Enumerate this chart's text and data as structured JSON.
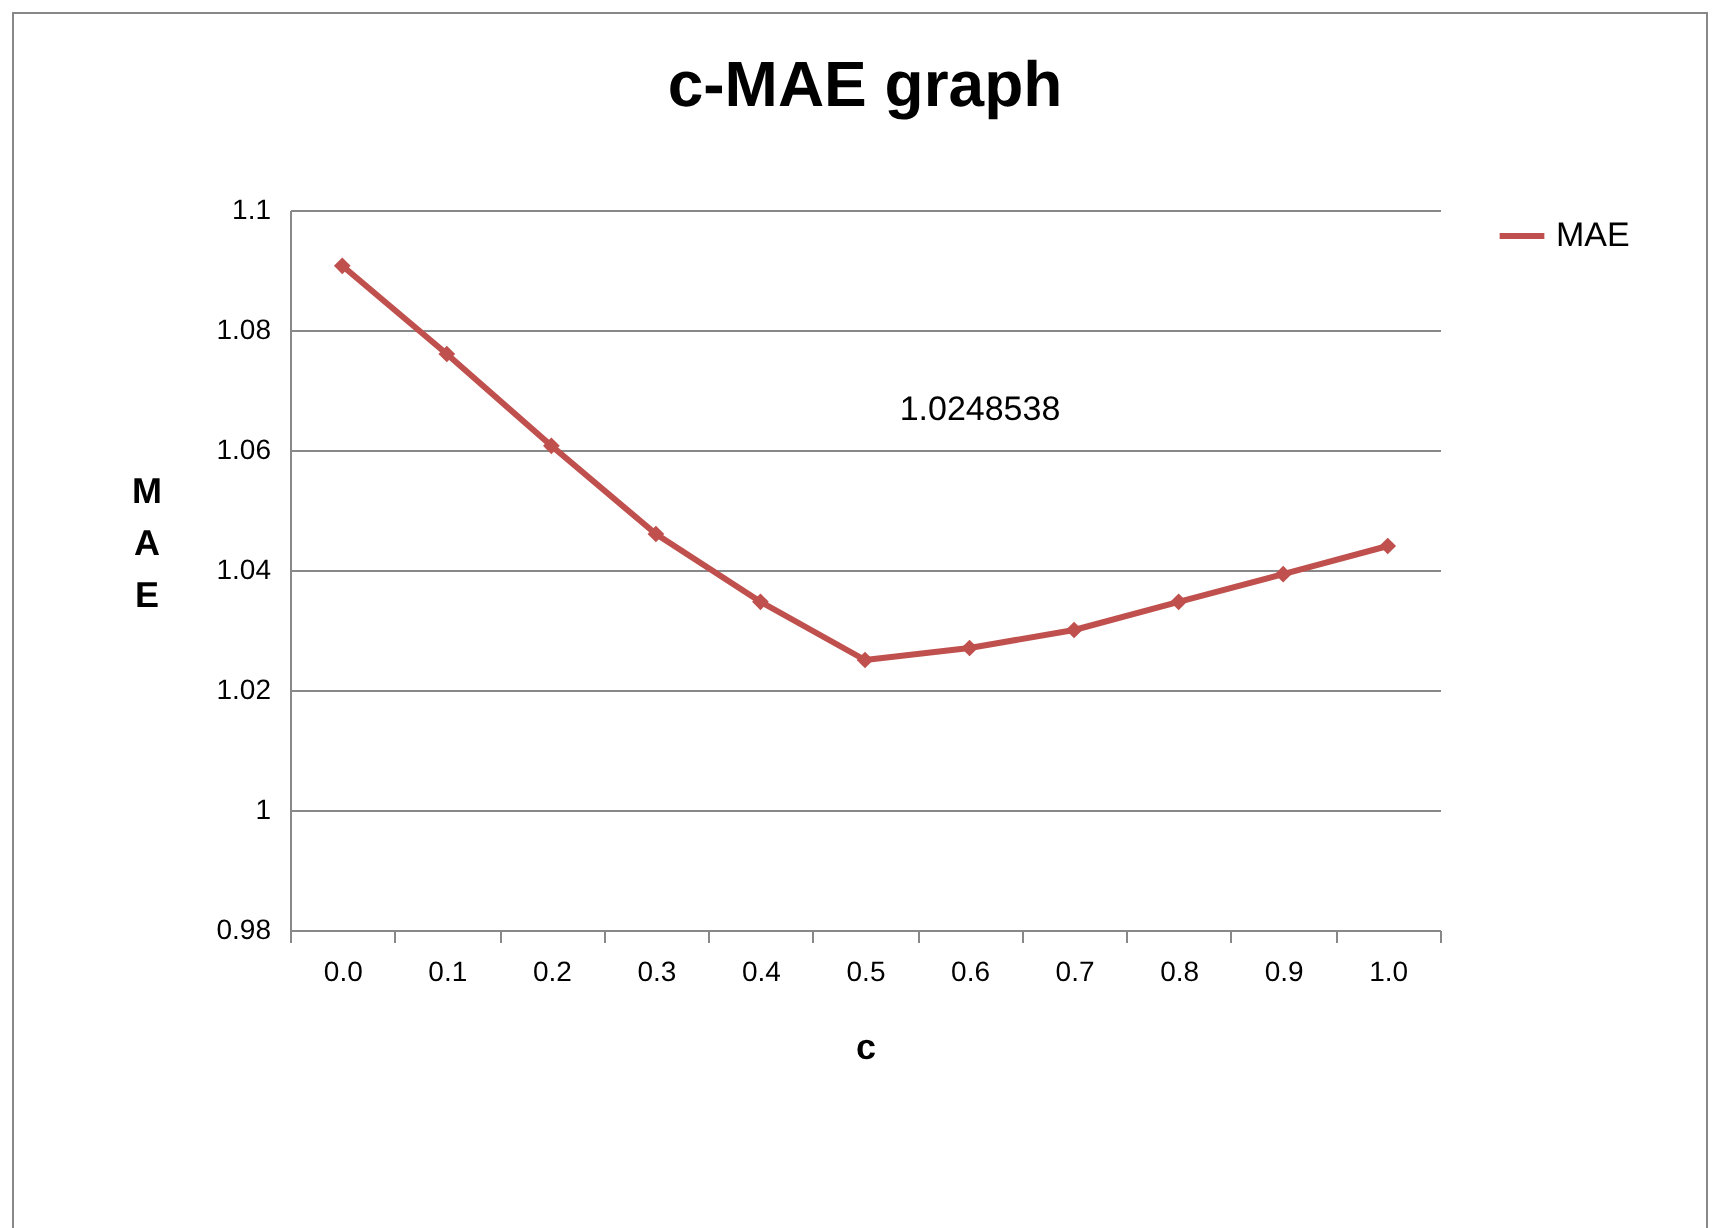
{
  "chart_data": {
    "type": "line",
    "title": "c-MAE graph",
    "xlabel": "c",
    "ylabel": "MAE",
    "categories": [
      "0.0",
      "0.1",
      "0.2",
      "0.3",
      "0.4",
      "0.5",
      "0.6",
      "0.7",
      "0.8",
      "0.9",
      "1.0"
    ],
    "series": [
      {
        "name": "MAE",
        "color": "#c0504d",
        "values": [
          1.0907,
          1.076,
          1.0607,
          1.046,
          1.0347,
          1.025,
          1.027,
          1.03,
          1.0347,
          1.0393,
          1.044
        ]
      }
    ],
    "ylim": [
      0.98,
      1.1
    ],
    "yticks": [
      0.98,
      1,
      1.02,
      1.04,
      1.06,
      1.08,
      1.1
    ],
    "annotations": [
      "1.0248538"
    ],
    "grid": "y",
    "legend": "right",
    "marker": "diamond",
    "line_style": "solid"
  }
}
